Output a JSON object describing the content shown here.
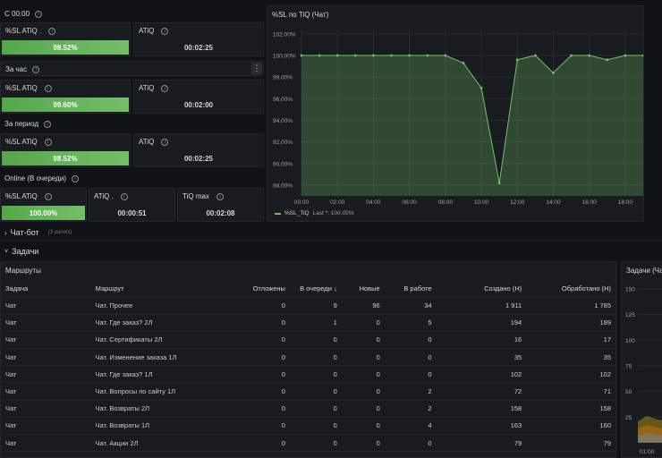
{
  "left": {
    "group1": {
      "title": "С 00:00",
      "sl_label": "%SL ATiQ .",
      "sl_value": "98.52%",
      "atiq_label": "ATiQ",
      "atiq_value": "00:02:25"
    },
    "group2": {
      "title": "За час",
      "sl_label": "%SL ATiQ",
      "sl_value": "99.60%",
      "atiq_label": "ATiQ",
      "atiq_value": "00:02:00"
    },
    "group3": {
      "title": "За период",
      "sl_label": "%SL ATiQ",
      "sl_value": "98.52%",
      "atiq_label": "ATiQ",
      "atiq_value": "00:02:25"
    },
    "group4": {
      "title": "Online (В очереди)",
      "sl_label": "%SL ATiQ",
      "sl_value": "100.00%",
      "atiq_label": "ATiQ .",
      "atiq_value": "00:00:51",
      "tiq_label": "TiQ max",
      "tiq_value": "00:02:08"
    }
  },
  "menu_icon": "⋮",
  "chart": {
    "title": "%SL по TiQ (Чат)",
    "legend_label": "%SL_TiQ",
    "legend_last": "Last *: 100.05%",
    "chart_data": {
      "type": "area",
      "x": [
        "00:00",
        "01:00",
        "02:00",
        "03:00",
        "04:00",
        "05:00",
        "06:00",
        "07:00",
        "08:00",
        "09:00",
        "10:00",
        "11:00",
        "12:00",
        "13:00",
        "14:00",
        "15:00",
        "16:00",
        "17:00",
        "18:00",
        "19:00"
      ],
      "series": [
        {
          "name": "%SL_TiQ",
          "values": [
            100.0,
            100.0,
            100.0,
            100.0,
            100.0,
            100.0,
            100.0,
            100.0,
            100.0,
            99.3,
            97.0,
            88.2,
            99.6,
            100.0,
            98.4,
            100.0,
            100.0,
            99.6,
            100.0,
            100.0
          ]
        }
      ],
      "xticks": [
        "00:00",
        "02:00",
        "04:00",
        "06:00",
        "08:00",
        "10:00",
        "12:00",
        "14:00",
        "16:00",
        "18:00"
      ],
      "yticks": [
        "102.00%",
        "100.00%",
        "98.00%",
        "96.00%",
        "94.00%",
        "92.00%",
        "90.00%",
        "88.00%"
      ],
      "ylim": [
        87,
        102.4
      ],
      "color": "#73bf69"
    }
  },
  "rows": {
    "chatbot": {
      "label": "Чат-бот",
      "sub": "(3 panels)"
    },
    "tasks": {
      "label": "Задачи"
    }
  },
  "routes": {
    "title": "Маршруты",
    "columns": [
      "Задача",
      "Маршрут",
      "Отложены",
      "В очереди ↓",
      "Новые",
      "В работе",
      "Создано (Н)",
      "Обработано (Н)"
    ],
    "rows": [
      [
        "Чат",
        "Чат. Прочее",
        "0",
        "9",
        "96",
        "34",
        "1 911",
        "1 785"
      ],
      [
        "Чат",
        "Чат. Где заказ? 2Л",
        "0",
        "1",
        "0",
        "5",
        "194",
        "189"
      ],
      [
        "Чат",
        "Чат. Сертификаты 2Л",
        "0",
        "0",
        "0",
        "0",
        "16",
        "17"
      ],
      [
        "Чат",
        "Чат. Изменение заказа 1Л",
        "0",
        "0",
        "0",
        "0",
        "35",
        "35"
      ],
      [
        "Чат",
        "Чат. Где заказ? 1Л",
        "0",
        "0",
        "0",
        "0",
        "102",
        "102"
      ],
      [
        "Чат",
        "Чат. Вопросы по сайту 1Л",
        "0",
        "0",
        "0",
        "2",
        "72",
        "71"
      ],
      [
        "Чат",
        "Чат. Возвраты 2Л",
        "0",
        "0",
        "0",
        "2",
        "158",
        "158"
      ],
      [
        "Чат",
        "Чат. Возвраты 1Л",
        "0",
        "0",
        "0",
        "4",
        "163",
        "160"
      ],
      [
        "Чат",
        "Чат. Акции 2Л",
        "0",
        "0",
        "0",
        "0",
        "79",
        "79"
      ]
    ]
  },
  "tasks_chart": {
    "title": "Задачи (Ча",
    "yticks": [
      "150",
      "125",
      "100",
      "75",
      "50",
      "25"
    ],
    "xtick": "01:00"
  }
}
